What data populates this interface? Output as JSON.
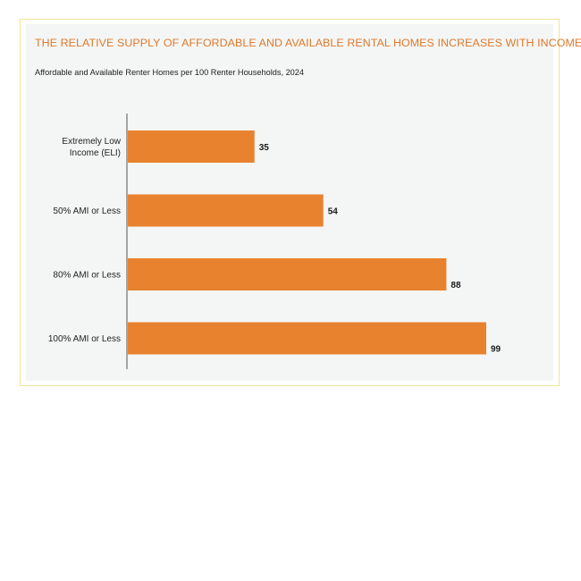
{
  "chart_data": {
    "type": "bar",
    "orientation": "horizontal",
    "title": "THE RELATIVE SUPPLY OF AFFORDABLE AND AVAILABLE RENTAL HOMES INCREASES WITH INCOME",
    "subtitle": "Affordable and Available Renter Homes per 100 Renter Households, 2024",
    "categories": [
      [
        "Extremely Low",
        "Income (ELI)"
      ],
      [
        "50% AMI or Less"
      ],
      [
        "80% AMI or Less"
      ],
      [
        "100% AMI or Less"
      ]
    ],
    "values": [
      35,
      54,
      88,
      99
    ],
    "data_labels": [
      "35",
      "54",
      "88",
      "99"
    ],
    "xlim": [
      0,
      100
    ],
    "grid": false,
    "bar_color": "#e8822f"
  }
}
